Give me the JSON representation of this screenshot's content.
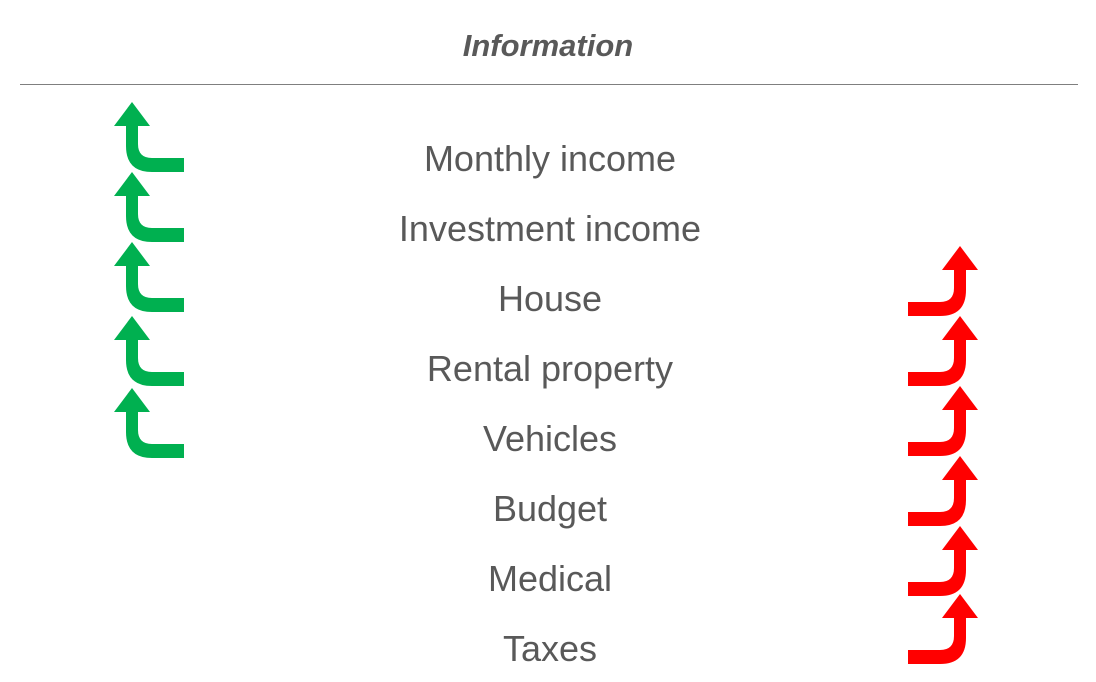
{
  "title": "Information",
  "items": [
    "Monthly income",
    "Investment income",
    "House",
    "Rental property",
    "Vehicles",
    "Budget",
    "Medical",
    "Taxes"
  ],
  "left_arrows": {
    "count": 5,
    "color": "#00B050",
    "icon": "bent-arrow-up-icon"
  },
  "right_arrows": {
    "count": 6,
    "color": "#FF0000",
    "icon": "bent-arrow-up-icon"
  }
}
